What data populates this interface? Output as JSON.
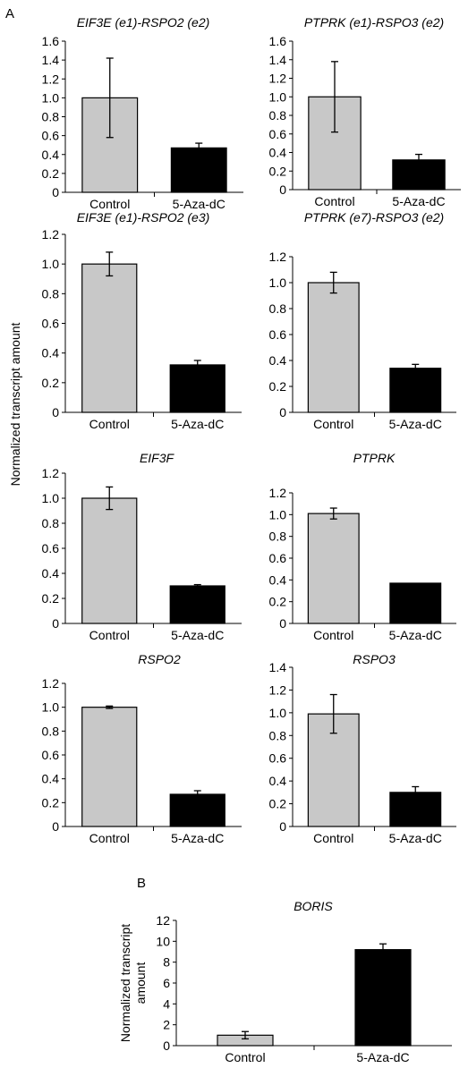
{
  "panel_labels": {
    "a": "A",
    "b": "B"
  },
  "shared_ylabel": "Normalized transcript amount",
  "colors": {
    "control_bar": "#c8c8c8",
    "treated_bar": "#000000",
    "axis": "#000000"
  },
  "chart_data": [
    {
      "type": "bar",
      "title": "EIF3E (e1)-RSPO2 (e2)",
      "categories": [
        "Control",
        "5-Aza-dC"
      ],
      "values": [
        1.0,
        0.47
      ],
      "errors": [
        0.42,
        0.05
      ],
      "ylim": [
        0,
        1.6
      ],
      "yticks": [
        "0",
        "0.2",
        "0.4",
        "0.6",
        "0.8",
        "1.0",
        "1.2",
        "1.4",
        "1.6"
      ],
      "xlabel": "",
      "ylabel": ""
    },
    {
      "type": "bar",
      "title": "PTPRK (e1)-RSPO3 (e2)",
      "categories": [
        "Control",
        "5-Aza-dC"
      ],
      "values": [
        1.0,
        0.32
      ],
      "errors": [
        0.38,
        0.06
      ],
      "ylim": [
        0,
        1.6
      ],
      "yticks": [
        "0",
        "0.2",
        "0.4",
        "0.6",
        "0.8",
        "1.0",
        "1.2",
        "1.4",
        "1.6"
      ],
      "xlabel": "",
      "ylabel": ""
    },
    {
      "type": "bar",
      "title": "EIF3E (e1)-RSPO2 (e3)",
      "categories": [
        "Control",
        "5-Aza-dC"
      ],
      "values": [
        1.0,
        0.32
      ],
      "errors": [
        0.08,
        0.03
      ],
      "ylim": [
        0,
        1.2
      ],
      "yticks": [
        "0",
        "0.2",
        "0.4",
        "0.6",
        "0.8",
        "1.0",
        "1.2"
      ],
      "xlabel": "",
      "ylabel": ""
    },
    {
      "type": "bar",
      "title": "PTPRK (e7)-RSPO3 (e2)",
      "categories": [
        "Control",
        "5-Aza-dC"
      ],
      "values": [
        1.0,
        0.34
      ],
      "errors": [
        0.08,
        0.03
      ],
      "ylim": [
        0,
        1.2
      ],
      "yticks": [
        "0",
        "0.2",
        "0.4",
        "0.6",
        "0.8",
        "1.0",
        "1.2"
      ],
      "xlabel": "",
      "ylabel": ""
    },
    {
      "type": "bar",
      "title": "EIF3F",
      "categories": [
        "Control",
        "5-Aza-dC"
      ],
      "values": [
        1.0,
        0.3
      ],
      "errors": [
        0.09,
        0.01
      ],
      "ylim": [
        0,
        1.2
      ],
      "yticks": [
        "0",
        "0.2",
        "0.4",
        "0.6",
        "0.8",
        "1.0",
        "1.2"
      ],
      "xlabel": "",
      "ylabel": ""
    },
    {
      "type": "bar",
      "title": "PTPRK",
      "categories": [
        "Control",
        "5-Aza-dC"
      ],
      "values": [
        1.01,
        0.37
      ],
      "errors": [
        0.05,
        0.0
      ],
      "ylim": [
        0,
        1.2
      ],
      "yticks": [
        "0",
        "0.2",
        "0.4",
        "0.6",
        "0.8",
        "1.0",
        "1.2"
      ],
      "xlabel": "",
      "ylabel": ""
    },
    {
      "type": "bar",
      "title": "RSPO2",
      "categories": [
        "Control",
        "5-Aza-dC"
      ],
      "values": [
        1.0,
        0.27
      ],
      "errors": [
        0.01,
        0.03
      ],
      "ylim": [
        0,
        1.2
      ],
      "yticks": [
        "0",
        "0.2",
        "0.4",
        "0.6",
        "0.8",
        "1.0",
        "1.2"
      ],
      "xlabel": "",
      "ylabel": ""
    },
    {
      "type": "bar",
      "title": "RSPO3",
      "categories": [
        "Control",
        "5-Aza-dC"
      ],
      "values": [
        0.99,
        0.3
      ],
      "errors": [
        0.17,
        0.05
      ],
      "ylim": [
        0,
        1.4
      ],
      "yticks": [
        "0",
        "0.2",
        "0.4",
        "0.6",
        "0.8",
        "1.0",
        "1.2",
        "1.4"
      ],
      "xlabel": "",
      "ylabel": ""
    },
    {
      "type": "bar",
      "title": "BORIS",
      "categories": [
        "Control",
        "5-Aza-dC"
      ],
      "values": [
        1.0,
        9.2
      ],
      "errors": [
        0.35,
        0.55
      ],
      "ylim": [
        0,
        12
      ],
      "yticks": [
        "0",
        "2",
        "4",
        "6",
        "8",
        "10",
        "12"
      ],
      "xlabel": "",
      "ylabel": [
        "Normalized transcript",
        "amount"
      ]
    }
  ]
}
